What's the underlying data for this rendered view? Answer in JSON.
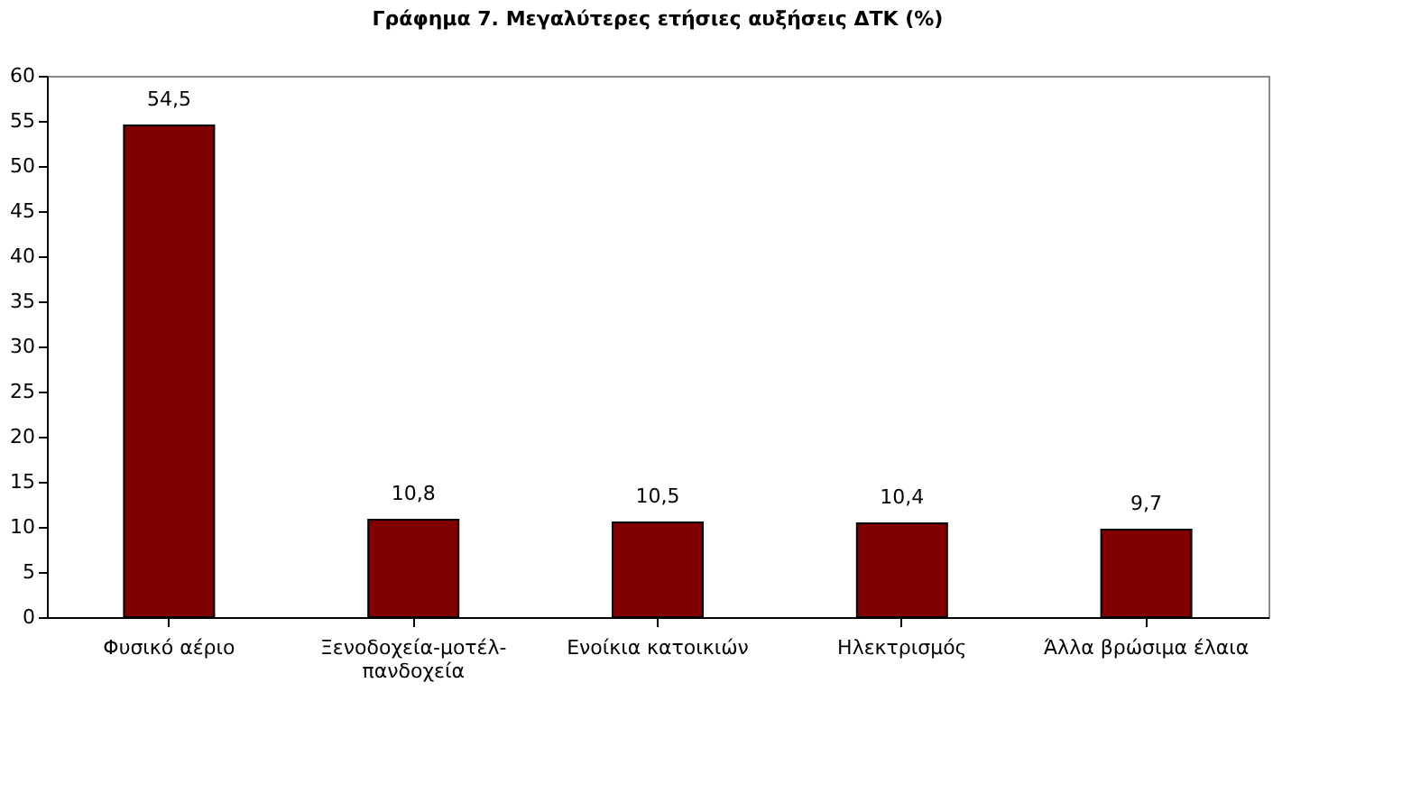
{
  "chart_data": {
    "type": "bar",
    "title": "Γράφημα 7. Μεγαλύτερες ετήσιες αυξήσεις ΔΤΚ (%)",
    "categories": [
      "Φυσικό αέριο",
      "Ξενοδοχεία-μοτέλ-πανδοχεία",
      "Ενοίκια κατοικιών",
      "Ηλεκτρισμός",
      "Άλλα βρώσιμα έλαια"
    ],
    "values": [
      54.5,
      10.8,
      10.5,
      10.4,
      9.7
    ],
    "value_labels": [
      "54,5",
      "10,8",
      "10,5",
      "10,4",
      "9,7"
    ],
    "color": "#800000",
    "ylim": [
      0,
      60
    ],
    "yticks": [
      0,
      5,
      10,
      15,
      20,
      25,
      30,
      35,
      40,
      45,
      50,
      55,
      60
    ],
    "grid": false
  }
}
